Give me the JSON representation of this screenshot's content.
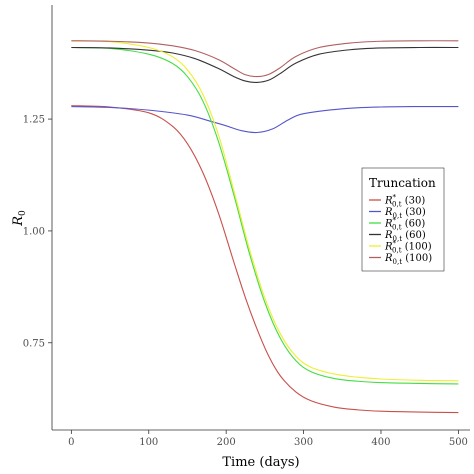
{
  "chart_data": {
    "type": "line",
    "xlabel": "Time (days)",
    "ylabel": "R",
    "ylabel_sub": "0",
    "xlim": [
      -25,
      515
    ],
    "ylim": [
      0.555,
      1.505
    ],
    "xticks": [
      0,
      100,
      200,
      300,
      400,
      500
    ],
    "yticks": [
      0.75,
      1.0,
      1.25
    ],
    "ytick_labels": [
      "0.75",
      "1.00",
      "1.25"
    ],
    "legend": {
      "title": "Truncation",
      "position": "right"
    },
    "series": [
      {
        "name": "R*0,t (30)",
        "legend_main": "R",
        "legend_sup": "*",
        "legend_sub": "0,t",
        "legend_suffix": " (30)",
        "color": "#c8504b",
        "x": [
          0,
          50,
          100,
          130,
          150,
          170,
          190,
          210,
          225,
          240,
          255,
          270,
          290,
          310,
          340,
          370,
          400,
          450,
          500
        ],
        "y": [
          1.28,
          1.277,
          1.264,
          1.235,
          1.195,
          1.13,
          1.04,
          0.93,
          0.85,
          0.78,
          0.72,
          0.676,
          0.64,
          0.62,
          0.606,
          0.6,
          0.597,
          0.595,
          0.594
        ]
      },
      {
        "name": "R0,t (30)",
        "legend_main": "R",
        "legend_sup": "",
        "legend_sub": "0,t",
        "legend_suffix": " (30)",
        "color": "#5555cc",
        "x": [
          0,
          50,
          100,
          150,
          180,
          200,
          220,
          240,
          260,
          280,
          300,
          350,
          400,
          450,
          500
        ],
        "y": [
          1.278,
          1.276,
          1.27,
          1.259,
          1.245,
          1.235,
          1.224,
          1.22,
          1.228,
          1.248,
          1.262,
          1.273,
          1.277,
          1.278,
          1.278
        ]
      },
      {
        "name": "R*0,t (60)",
        "legend_main": "R",
        "legend_sup": "*",
        "legend_sub": "0,t",
        "legend_suffix": " (60)",
        "color": "#44dd44",
        "x": [
          0,
          50,
          100,
          130,
          150,
          170,
          190,
          210,
          230,
          250,
          270,
          290,
          310,
          340,
          370,
          400,
          450,
          500
        ],
        "y": [
          1.41,
          1.408,
          1.395,
          1.375,
          1.345,
          1.29,
          1.2,
          1.08,
          0.95,
          0.84,
          0.76,
          0.71,
          0.685,
          0.67,
          0.664,
          0.661,
          0.659,
          0.658
        ]
      },
      {
        "name": "R0,t (60)",
        "legend_main": "R",
        "legend_sup": "",
        "legend_sub": "0,t",
        "legend_suffix": " (60)",
        "color": "#333333",
        "x": [
          0,
          50,
          100,
          130,
          160,
          190,
          210,
          225,
          240,
          255,
          270,
          290,
          320,
          360,
          400,
          450,
          500
        ],
        "y": [
          1.41,
          1.409,
          1.404,
          1.398,
          1.385,
          1.363,
          1.345,
          1.335,
          1.332,
          1.337,
          1.352,
          1.375,
          1.395,
          1.405,
          1.409,
          1.41,
          1.41
        ]
      },
      {
        "name": "R*0,t (100)",
        "legend_main": "R",
        "legend_sup": "*",
        "legend_sub": "0,t",
        "legend_suffix": " (100)",
        "color": "#eeee33",
        "x": [
          0,
          50,
          100,
          130,
          150,
          170,
          190,
          210,
          230,
          250,
          270,
          290,
          310,
          340,
          370,
          400,
          450,
          500
        ],
        "y": [
          1.425,
          1.423,
          1.41,
          1.39,
          1.36,
          1.305,
          1.215,
          1.09,
          0.96,
          0.85,
          0.77,
          0.72,
          0.695,
          0.68,
          0.673,
          0.669,
          0.666,
          0.665
        ]
      },
      {
        "name": "R0,t (100)",
        "legend_main": "R",
        "legend_sup": "",
        "legend_sub": "0,t",
        "legend_suffix": " (100)",
        "color": "#b06060",
        "x": [
          0,
          50,
          100,
          130,
          160,
          190,
          210,
          225,
          240,
          255,
          270,
          290,
          320,
          360,
          400,
          450,
          500
        ],
        "y": [
          1.425,
          1.424,
          1.42,
          1.414,
          1.403,
          1.383,
          1.363,
          1.349,
          1.345,
          1.35,
          1.365,
          1.39,
          1.41,
          1.42,
          1.424,
          1.425,
          1.425
        ]
      }
    ]
  }
}
